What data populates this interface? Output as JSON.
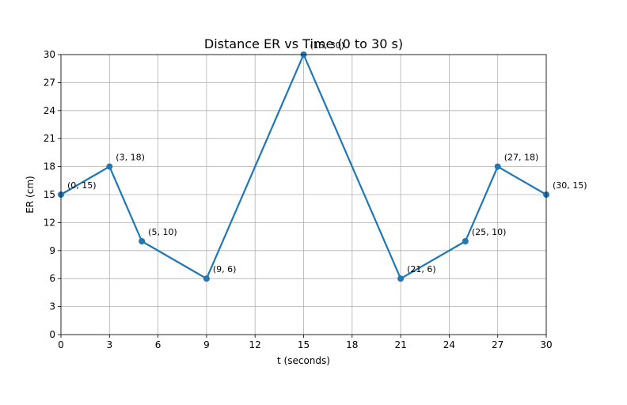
{
  "chart_data": {
    "type": "line",
    "title": "Distance ER vs Time (0 to 30 s)",
    "xlabel": "t (seconds)",
    "ylabel": "ER (cm)",
    "xlim": [
      0,
      30
    ],
    "ylim": [
      0,
      30
    ],
    "xticks": [
      0,
      3,
      6,
      9,
      12,
      15,
      18,
      21,
      24,
      27,
      30
    ],
    "yticks": [
      0,
      3,
      6,
      9,
      12,
      15,
      18,
      21,
      24,
      27,
      30
    ],
    "grid": true,
    "line_color": "#1f77b4",
    "series": [
      {
        "points": [
          {
            "x": 0,
            "y": 15,
            "label": "(0, 15)"
          },
          {
            "x": 3,
            "y": 18,
            "label": "(3, 18)"
          },
          {
            "x": 5,
            "y": 10,
            "label": "(5, 10)"
          },
          {
            "x": 9,
            "y": 6,
            "label": "(9, 6)"
          },
          {
            "x": 15,
            "y": 30,
            "label": "(15, 30)"
          },
          {
            "x": 21,
            "y": 6,
            "label": "(21, 6)"
          },
          {
            "x": 25,
            "y": 10,
            "label": "(25, 10)"
          },
          {
            "x": 27,
            "y": 18,
            "label": "(27, 18)"
          },
          {
            "x": 30,
            "y": 15,
            "label": "(30, 15)"
          }
        ]
      }
    ]
  }
}
